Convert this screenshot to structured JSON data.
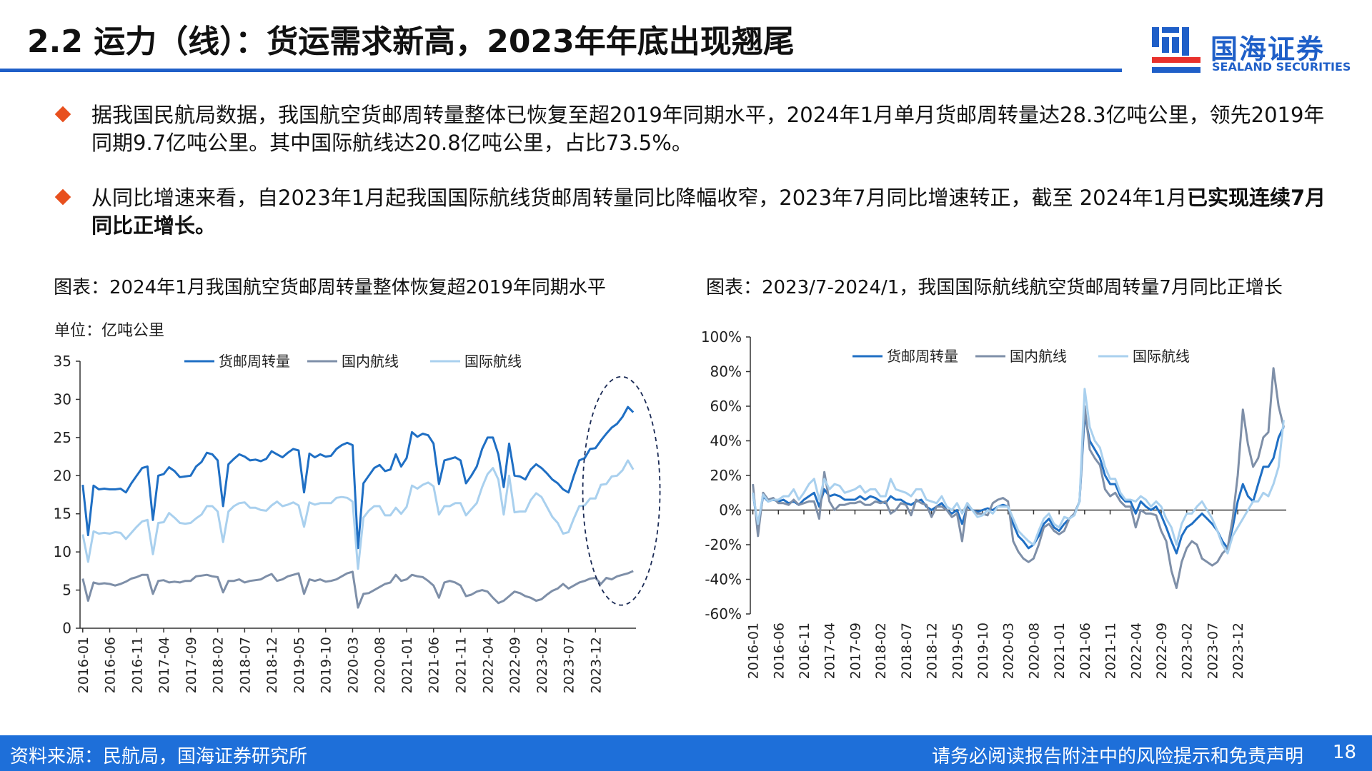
{
  "page": {
    "title": "2.2 运力（线）：货运需求新高，2023年年底出现翘尾",
    "logo_cn": "国海证券",
    "logo_en": "SEALAND SECURITIES",
    "colors": {
      "brand": "#1F5FC8",
      "footer": "#1E6FD9",
      "bullet": "#E8501E"
    }
  },
  "bullets": [
    {
      "text": "据我国民航局数据，我国航空货邮周转量整体已恢复至超2019年同期水平，2024年1月单月货邮周转量达28.3亿吨公里，领先2019年同期9.7亿吨公里。其中国际航线达20.8亿吨公里，占比73.5%。",
      "bold": ""
    },
    {
      "text": "从同比增速来看，自2023年1月起我国国际航线货邮周转量同比降幅收窄，2023年7月同比增速转正，截至 2024年1月",
      "bold": "已实现连续7月同比正增长。"
    }
  ],
  "footer": {
    "source": "资料来源：民航局，国海证券研究所",
    "disclaimer": "请务必阅读报告附注中的风险提示和免责声明",
    "page_number": "18"
  },
  "chart_data": [
    {
      "type": "line",
      "title": "图表：2024年1月我国航空货邮周转量整体恢复超2019年同期水平",
      "unit_label": "单位：亿吨公里",
      "xlabel": "",
      "ylabel": "",
      "ylim": [
        0,
        35
      ],
      "yticks": [
        "0",
        "5",
        "10",
        "15",
        "20",
        "25",
        "30",
        "35"
      ],
      "x_tick_labels": [
        "2016-01",
        "2016-06",
        "2016-11",
        "2017-04",
        "2017-09",
        "2018-02",
        "2018-07",
        "2018-12",
        "2019-05",
        "2019-10",
        "2020-03",
        "2020-08",
        "2021-01",
        "2021-06",
        "2021-11",
        "2022-04",
        "2022-09",
        "2023-02",
        "2023-07",
        "2023-12"
      ],
      "legend": "top",
      "annotation": "dashed ellipse highlighting 2023-07 to 2024-01",
      "series": [
        {
          "name": "货邮周转量",
          "color": "#1F6FC4",
          "width": 3,
          "values": [
            18.8,
            12.2,
            18.7,
            18.2,
            18.3,
            18.2,
            18.2,
            18.3,
            17.8,
            19.0,
            20.0,
            21.0,
            21.2,
            14.2,
            20.0,
            20.2,
            21.1,
            20.6,
            19.8,
            19.9,
            20.0,
            21.2,
            21.8,
            23.0,
            22.8,
            22.0,
            16.0,
            21.5,
            22.2,
            22.8,
            22.5,
            22.0,
            22.1,
            21.9,
            22.2,
            23.2,
            22.8,
            22.4,
            23.0,
            23.5,
            23.3,
            17.8,
            22.9,
            22.4,
            22.8,
            22.5,
            22.6,
            23.5,
            24.0,
            24.3,
            24.0,
            10.5,
            19.0,
            20.0,
            21.0,
            21.4,
            20.6,
            20.8,
            22.8,
            21.2,
            22.3,
            25.7,
            25.1,
            25.5,
            25.3,
            24.2,
            18.9,
            22.0,
            22.2,
            22.4,
            22.0,
            19.0,
            20.0,
            21.2,
            23.5,
            25.0,
            25.0,
            22.8,
            18.5,
            24.2,
            20.0,
            19.9,
            19.5,
            20.8,
            21.5,
            21.0,
            20.3,
            19.5,
            19.0,
            18.2,
            17.8,
            20.0,
            22.0,
            22.3,
            23.5,
            23.6,
            24.6,
            25.5,
            26.3,
            26.8,
            27.7,
            29.0,
            28.3
          ]
        },
        {
          "name": "国内航线",
          "color": "#7E8FA8",
          "width": 3,
          "values": [
            6.5,
            3.6,
            6.0,
            5.8,
            5.9,
            5.8,
            5.6,
            5.8,
            6.1,
            6.5,
            6.7,
            7.0,
            7.0,
            4.5,
            6.2,
            6.3,
            6.0,
            6.1,
            6.0,
            6.2,
            6.2,
            6.8,
            6.9,
            7.0,
            6.8,
            6.7,
            4.7,
            6.2,
            6.2,
            6.4,
            6.0,
            6.2,
            6.3,
            6.4,
            6.8,
            7.1,
            6.2,
            6.4,
            6.8,
            7.0,
            7.2,
            4.5,
            6.4,
            6.2,
            6.4,
            6.1,
            6.2,
            6.4,
            6.8,
            7.2,
            7.4,
            2.7,
            4.5,
            4.6,
            5.0,
            5.4,
            5.8,
            6.0,
            7.0,
            6.2,
            6.4,
            7.0,
            6.8,
            6.7,
            6.2,
            5.6,
            4.0,
            6.0,
            6.2,
            6.0,
            5.6,
            4.2,
            4.4,
            4.8,
            5.0,
            4.8,
            4.0,
            3.3,
            3.6,
            4.2,
            4.8,
            4.6,
            4.2,
            4.0,
            3.6,
            3.8,
            4.4,
            4.9,
            5.2,
            5.8,
            5.2,
            5.6,
            6.0,
            6.2,
            6.5,
            6.6,
            5.8,
            6.6,
            6.4,
            6.8,
            7.0,
            7.2,
            7.5
          ]
        },
        {
          "name": "国际航线",
          "color": "#A9D0EE",
          "width": 3,
          "values": [
            12.3,
            8.7,
            12.7,
            12.4,
            12.5,
            12.4,
            12.6,
            12.5,
            11.7,
            12.5,
            13.3,
            14.0,
            14.2,
            9.7,
            13.8,
            13.9,
            15.1,
            14.5,
            13.8,
            13.7,
            13.8,
            14.4,
            14.9,
            16.0,
            16.0,
            15.3,
            11.3,
            15.3,
            16.0,
            16.4,
            16.5,
            15.8,
            15.8,
            15.5,
            15.4,
            16.1,
            16.6,
            16.0,
            16.2,
            16.5,
            16.1,
            13.3,
            16.5,
            16.2,
            16.4,
            16.4,
            16.4,
            17.1,
            17.2,
            17.1,
            16.6,
            7.8,
            14.5,
            15.4,
            16.0,
            16.0,
            14.8,
            14.8,
            15.8,
            15.0,
            15.9,
            18.7,
            18.3,
            18.8,
            19.1,
            18.6,
            14.9,
            16.0,
            16.0,
            16.4,
            16.4,
            14.8,
            15.6,
            16.4,
            18.5,
            20.2,
            21.0,
            19.5,
            14.9,
            20.0,
            15.2,
            15.3,
            15.3,
            16.8,
            17.7,
            17.2,
            15.9,
            14.6,
            13.8,
            12.4,
            12.6,
            14.4,
            16.0,
            16.1,
            17.0,
            17.0,
            18.8,
            18.9,
            19.9,
            20.0,
            20.7,
            22.0,
            20.8
          ]
        }
      ]
    },
    {
      "type": "line",
      "title": "图表：2023/7-2024/1，我国国际航线航空货邮周转量7月同比正增长",
      "xlabel": "",
      "ylabel": "",
      "ylim": [
        -60,
        100
      ],
      "yticks": [
        "-60%",
        "-40%",
        "-20%",
        "0%",
        "20%",
        "40%",
        "60%",
        "80%",
        "100%"
      ],
      "x_tick_labels": [
        "2016-01",
        "2016-06",
        "2016-11",
        "2017-04",
        "2017-09",
        "2018-02",
        "2018-07",
        "2018-12",
        "2019-05",
        "2019-10",
        "2020-03",
        "2020-08",
        "2021-01",
        "2021-06",
        "2021-11",
        "2022-04",
        "2022-09",
        "2023-02",
        "2023-07",
        "2023-12"
      ],
      "legend": "top",
      "series": [
        {
          "name": "货邮周转量",
          "color": "#1F6FC4",
          "width": 3,
          "values": [
            10,
            -10,
            8,
            5,
            6,
            5,
            6,
            4,
            5,
            3,
            6,
            8,
            10,
            2,
            12,
            8,
            9,
            8,
            6,
            6,
            6,
            8,
            6,
            8,
            7,
            5,
            4,
            8,
            6,
            6,
            4,
            3,
            5,
            6,
            2,
            0,
            2,
            4,
            0,
            -2,
            0,
            -8,
            2,
            0,
            -1,
            0,
            1,
            0,
            2,
            3,
            2,
            -8,
            -15,
            -18,
            -22,
            -20,
            -15,
            -8,
            -5,
            -10,
            -12,
            -8,
            -5,
            -2,
            5,
            55,
            40,
            35,
            30,
            20,
            15,
            15,
            8,
            5,
            5,
            -2,
            5,
            2,
            0,
            2,
            -3,
            -10,
            -18,
            -25,
            -15,
            -10,
            -8,
            -5,
            -2,
            -5,
            -8,
            -12,
            -18,
            -22,
            -10,
            5,
            15,
            8,
            5,
            15,
            25,
            25,
            30,
            42,
            48
          ]
        },
        {
          "name": "国内航线",
          "color": "#7E8FA8",
          "width": 3,
          "values": [
            15,
            -15,
            10,
            6,
            7,
            4,
            4,
            3,
            6,
            3,
            4,
            5,
            5,
            -5,
            22,
            5,
            0,
            3,
            3,
            4,
            4,
            5,
            3,
            3,
            5,
            4,
            5,
            -2,
            0,
            4,
            3,
            -3,
            6,
            4,
            3,
            -4,
            2,
            2,
            0,
            -4,
            -2,
            -18,
            4,
            0,
            -2,
            -2,
            -3,
            4,
            6,
            7,
            5,
            -18,
            -24,
            -28,
            -30,
            -28,
            -20,
            -10,
            -8,
            -12,
            -14,
            -12,
            -5,
            -2,
            5,
            60,
            35,
            30,
            26,
            12,
            8,
            10,
            5,
            2,
            2,
            -10,
            0,
            -2,
            -2,
            -3,
            -12,
            -18,
            -35,
            -45,
            -30,
            -22,
            -18,
            -20,
            -28,
            -30,
            -32,
            -30,
            -25,
            -22,
            -5,
            20,
            58,
            38,
            25,
            30,
            42,
            45,
            82,
            60,
            48
          ]
        },
        {
          "name": "国际航线",
          "color": "#A9D0EE",
          "width": 3,
          "values": [
            10,
            -8,
            9,
            5,
            6,
            6,
            8,
            8,
            12,
            6,
            10,
            15,
            18,
            6,
            18,
            12,
            15,
            14,
            10,
            11,
            12,
            14,
            10,
            12,
            12,
            8,
            8,
            18,
            12,
            11,
            10,
            8,
            12,
            12,
            6,
            5,
            4,
            8,
            2,
            0,
            4,
            -2,
            4,
            0,
            -4,
            -3,
            0,
            -2,
            2,
            2,
            2,
            -5,
            -12,
            -15,
            -18,
            -20,
            -12,
            -5,
            -2,
            -8,
            -10,
            -4,
            -5,
            -3,
            5,
            70,
            48,
            40,
            36,
            25,
            18,
            18,
            10,
            6,
            6,
            5,
            8,
            6,
            2,
            5,
            2,
            -5,
            -10,
            -20,
            -8,
            -2,
            -2,
            2,
            5,
            0,
            -5,
            -12,
            -20,
            -25,
            -15,
            -10,
            -5,
            0,
            5,
            5,
            10,
            8,
            15,
            25,
            52
          ]
        }
      ]
    }
  ]
}
